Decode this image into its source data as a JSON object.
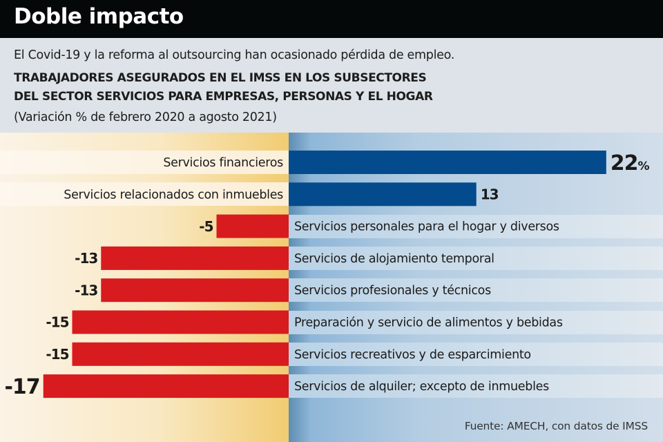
{
  "header": {
    "title": "Doble impacto",
    "subtitle": "El Covid-19 y la reforma al outsourcing han ocasionado pérdida de empleo.",
    "heading_line1": "TRABAJADORES ASEGURADOS EN EL IMSS EN LOS SUBSECTORES",
    "heading_line2": "DEL SECTOR SERVICIOS PARA EMPRESAS, PERSONAS Y EL HOGAR",
    "unit_note": "(Variación % de febrero 2020 a agosto 2021)"
  },
  "source": "Fuente: AMECH, con datos de IMSS",
  "colors": {
    "positive": "#034b8c",
    "negative": "#d81b1f",
    "header_bg": "#050808"
  },
  "chart_data": {
    "type": "bar",
    "orientation": "horizontal",
    "title": "Trabajadores asegurados en el IMSS en los subsectores del sector servicios para empresas, personas y el hogar",
    "xlabel": "Variación % de febrero 2020 a agosto 2021",
    "ylabel": "",
    "xlim": [
      -17,
      22
    ],
    "grid": false,
    "legend": "none",
    "unit_suffix": "%",
    "categories": [
      "Servicios financieros",
      "Servicios relacionados con inmuebles",
      "Servicios personales para el hogar y diversos",
      "Servicios de alojamiento temporal",
      "Servicios profesionales y técnicos",
      "Preparación y servicio de alimentos y bebidas",
      "Servicios recreativos y de esparcimiento",
      "Servicios de alquiler; excepto de inmuebles"
    ],
    "values": [
      22,
      13,
      -5,
      -13,
      -13,
      -15,
      -15,
      -17
    ],
    "value_labels": [
      "22",
      "13",
      "-5",
      "-13",
      "-13",
      "-15",
      "-15",
      "-17"
    ]
  }
}
